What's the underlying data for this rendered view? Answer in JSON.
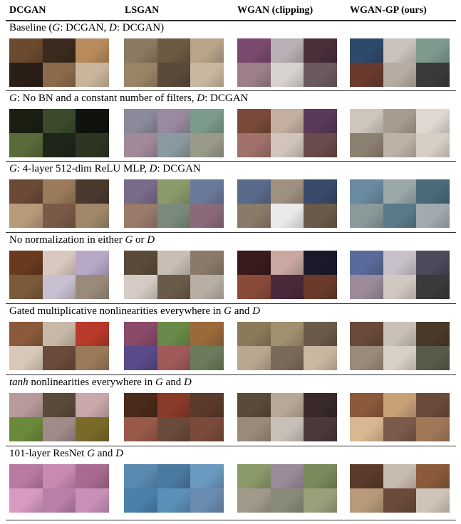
{
  "columns": [
    "DCGAN",
    "LSGAN",
    "WGAN (clipping)",
    "WGAN-GP (ours)"
  ],
  "rows": [
    {
      "caption_parts": [
        {
          "t": "Baseline (",
          "i": false
        },
        {
          "t": "G",
          "i": true
        },
        {
          "t": ": DCGAN, ",
          "i": false
        },
        {
          "t": "D",
          "i": true
        },
        {
          "t": ": DCGAN)",
          "i": false
        }
      ],
      "palettes": [
        [
          "#6b4a2e",
          "#3a2a1f",
          "#b88a5c",
          "#2b1e16",
          "#8a6a4a",
          "#c9b59a"
        ],
        [
          "#8a7a62",
          "#6d5a45",
          "#b7a48a",
          "#9a8466",
          "#5a4a3a",
          "#c8b8a0"
        ],
        [
          "#7a4a6e",
          "#b8b0b4",
          "#4a2e3a",
          "#9c7f88",
          "#d7d2d0",
          "#6a5a60"
        ],
        [
          "#2e4a6a",
          "#c9c3bb",
          "#7e9a8e",
          "#6a3a2e",
          "#b5aba0",
          "#3a3a3a"
        ]
      ]
    },
    {
      "caption_parts": [
        {
          "t": "G",
          "i": true
        },
        {
          "t": ": No BN and a constant number of filters, ",
          "i": false
        },
        {
          "t": "D",
          "i": true
        },
        {
          "t": ": DCGAN",
          "i": false
        }
      ],
      "palettes": [
        [
          "#1a1f12",
          "#3a4a2a",
          "#0f120d",
          "#5a6a3a",
          "#20251a",
          "#2e3522"
        ],
        [
          "#8a8a9a",
          "#9a8aa0",
          "#7a9a8a",
          "#a08a9a",
          "#8a9aa0",
          "#9a9a8a"
        ],
        [
          "#7a4a3a",
          "#c4aea0",
          "#5a3a5a",
          "#a0706a",
          "#d0c4bc",
          "#6a4a4a"
        ],
        [
          "#cfc6bc",
          "#a89c90",
          "#e0d8d0",
          "#8c8070",
          "#bdb2a6",
          "#d8cfc4"
        ]
      ]
    },
    {
      "caption_parts": [
        {
          "t": "G",
          "i": true
        },
        {
          "t": ": 4-layer 512-dim ReLU MLP, ",
          "i": false
        },
        {
          "t": "D",
          "i": true
        },
        {
          "t": ": DCGAN",
          "i": false
        }
      ],
      "palettes": [
        [
          "#6a4a36",
          "#9a7a5a",
          "#4a3a2e",
          "#b89a7a",
          "#7a5a46",
          "#a08868"
        ],
        [
          "#7a6a8a",
          "#8a9a6a",
          "#6a7a9a",
          "#9a7a6a",
          "#7a8a7a",
          "#8a6a7a"
        ],
        [
          "#5a6a8a",
          "#a09080",
          "#3a4a6a",
          "#8a7a6a",
          "#eaeaea",
          "#6a5a4a"
        ],
        [
          "#6a8aa0",
          "#9aa8a8",
          "#4a6a7a",
          "#8a9a9a",
          "#5a7a8a",
          "#a0aab0"
        ]
      ]
    },
    {
      "caption_parts": [
        {
          "t": "No normalization in either ",
          "i": false
        },
        {
          "t": "G",
          "i": true
        },
        {
          "t": " or ",
          "i": false
        },
        {
          "t": "D",
          "i": true
        }
      ],
      "palettes": [
        [
          "#6a3a1e",
          "#d8c8c0",
          "#b8a8c8",
          "#7a5a3a",
          "#c8c0d0",
          "#9a8a7a"
        ],
        [
          "#5a4a3a",
          "#c8beb4",
          "#8a7a6a",
          "#d4ccc4",
          "#6a5a4a",
          "#b8aea4"
        ],
        [
          "#3a1a1a",
          "#c8a8a0",
          "#1a1a2a",
          "#8a4a3a",
          "#4a2a3a",
          "#6a3a2a"
        ],
        [
          "#5a6a9a",
          "#c8c0c8",
          "#4a4a5a",
          "#9a8a9a",
          "#d0c8c0",
          "#3a3a3a"
        ]
      ]
    },
    {
      "caption_parts": [
        {
          "t": "Gated multiplicative nonlinearities everywhere in ",
          "i": false
        },
        {
          "t": "G",
          "i": true
        },
        {
          "t": " and ",
          "i": false
        },
        {
          "t": "D",
          "i": true
        }
      ],
      "palettes": [
        [
          "#8a5a3a",
          "#c8b8a8",
          "#b83a2a",
          "#d8c8b8",
          "#6a4a3a",
          "#9a7a5a"
        ],
        [
          "#8a4a6a",
          "#6a8a4a",
          "#9a6a3a",
          "#5a4a8a",
          "#a05a5a",
          "#6a7a5a"
        ],
        [
          "#8a7a5a",
          "#a09070",
          "#6a5a4a",
          "#b8a890",
          "#7a6a5a",
          "#c8b8a0"
        ],
        [
          "#6a4a3a",
          "#c8c0b4",
          "#4a3a2a",
          "#9a8a7a",
          "#d8d0c4",
          "#5a5a4a"
        ]
      ]
    },
    {
      "caption_parts": [
        {
          "t": "tanh",
          "i": true
        },
        {
          "t": " nonlinearities everywhere in ",
          "i": false
        },
        {
          "t": "G",
          "i": true
        },
        {
          "t": " and ",
          "i": false
        },
        {
          "t": "D",
          "i": true
        }
      ],
      "palettes": [
        [
          "#b89a9a",
          "#5a4a3a",
          "#c8a8a8",
          "#6a8a3a",
          "#a08a8a",
          "#7a6a2a"
        ],
        [
          "#4a2a1a",
          "#8a3a2a",
          "#5a3a2a",
          "#9a5a4a",
          "#6a4a3a",
          "#7a4a3a"
        ],
        [
          "#5a4a3a",
          "#b8a898",
          "#3a2a2a",
          "#9a8a7a",
          "#c8c0b8",
          "#4a3a3a"
        ],
        [
          "#8a5a3a",
          "#c8a078",
          "#6a4a3a",
          "#d8b890",
          "#7a5a4a",
          "#a07858"
        ]
      ]
    },
    {
      "caption_parts": [
        {
          "t": "101-layer ResNet ",
          "i": false
        },
        {
          "t": "G",
          "i": true
        },
        {
          "t": " and ",
          "i": false
        },
        {
          "t": "D",
          "i": true
        }
      ],
      "palettes": [
        [
          "#b87aa0",
          "#c88ab0",
          "#a86a90",
          "#d89ac0",
          "#b880a8",
          "#c890b8"
        ],
        [
          "#5a8ab0",
          "#4a7aa0",
          "#6a9ac0",
          "#4a80aa",
          "#5a90b8",
          "#6a8ab0"
        ],
        [
          "#8a9a6a",
          "#9a8a9a",
          "#7a8a5a",
          "#a09a8a",
          "#8a8a7a",
          "#9aa07a"
        ],
        [
          "#5a3a2a",
          "#c8bcb0",
          "#8a5a3a",
          "#b89a7a",
          "#6a4a3a",
          "#d0c4b8"
        ]
      ]
    }
  ]
}
